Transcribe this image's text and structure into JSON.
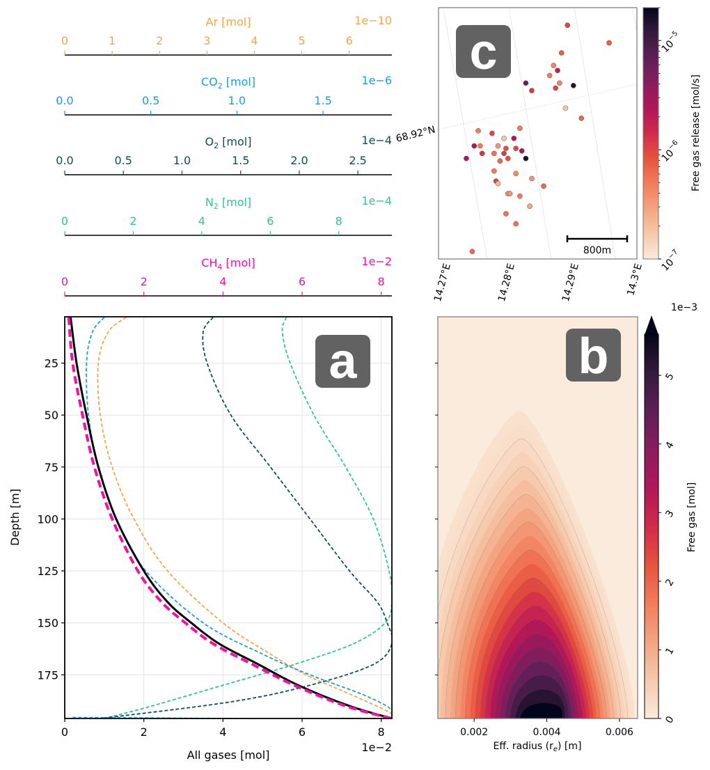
{
  "figure": {
    "panel_labels": {
      "a": "a",
      "b": "b",
      "c": "c"
    }
  },
  "chart_data": [
    {
      "id": "panel-a",
      "type": "line",
      "title": "",
      "xlabel": "All gases [mol]",
      "x_offset_label": "1e−2",
      "ylabel": "Depth [m]",
      "ylim": [
        196,
        2.7
      ],
      "xlim": [
        0,
        8.27
      ],
      "x_ticks": [
        "0",
        "2",
        "4",
        "6",
        "8"
      ],
      "x_tick_values": [
        0,
        2,
        4,
        6,
        8
      ],
      "y_ticks": [
        "25",
        "50",
        "75",
        "100",
        "125",
        "150",
        "175"
      ],
      "y_tick_values": [
        25,
        50,
        75,
        100,
        125,
        150,
        175
      ],
      "grid": true,
      "twin_axes": [
        {
          "gas": "Ar",
          "label": "Ar [mol]",
          "sub": "",
          "offset": "1e−10",
          "color": "#f7a445",
          "max": 6.9,
          "ticks": [
            "0",
            "1",
            "2",
            "3",
            "4",
            "5",
            "6"
          ],
          "tick_values": [
            0,
            1,
            2,
            3,
            4,
            5,
            6
          ]
        },
        {
          "gas": "CO2",
          "label": "CO",
          "sub": "2",
          "unit": " [mol]",
          "offset": "1e−6",
          "color": "#1a9be6",
          "max": 1.9,
          "ticks": [
            "0.0",
            "0.5",
            "1.0",
            "1.5"
          ],
          "tick_values": [
            0,
            0.5,
            1.0,
            1.5
          ]
        },
        {
          "gas": "O2",
          "label": "O",
          "sub": "2",
          "unit": " [mol]",
          "offset": "1e−4",
          "color": "#0e4d52",
          "max": 2.79,
          "ticks": [
            "0.0",
            "0.5",
            "1.0",
            "1.5",
            "2.0",
            "2.5"
          ],
          "tick_values": [
            0,
            0.5,
            1.0,
            1.5,
            2.0,
            2.5
          ]
        },
        {
          "gas": "N2",
          "label": "N",
          "sub": "2",
          "unit": " [mol]",
          "offset": "1e−4",
          "color": "#2ec68c",
          "max": 9.55,
          "ticks": [
            "0",
            "2",
            "4",
            "6",
            "8"
          ],
          "tick_values": [
            0,
            2,
            4,
            6,
            8
          ]
        },
        {
          "gas": "CH4",
          "label": "CH",
          "sub": "4",
          "unit": " [mol]",
          "offset": "1e−2",
          "color": "#f50fa8",
          "max": 8.27,
          "ticks": [
            "0",
            "2",
            "4",
            "6",
            "8"
          ],
          "tick_values": [
            0,
            2,
            4,
            6,
            8
          ]
        }
      ],
      "series": [
        {
          "name": "All gases",
          "color": "#000000",
          "style": "solid",
          "depth": [
            3,
            25,
            50,
            75,
            100,
            125,
            140,
            150,
            160,
            170,
            180,
            190,
            196
          ],
          "values": [
            0.15,
            0.3,
            0.55,
            0.85,
            1.3,
            2.0,
            2.6,
            3.2,
            3.9,
            4.9,
            5.9,
            7.2,
            8.27
          ]
        },
        {
          "name": "CH4",
          "color": "#f50fa8",
          "style": "dash-thick",
          "depth": [
            3,
            25,
            50,
            75,
            100,
            125,
            140,
            150,
            160,
            170,
            180,
            190,
            196
          ],
          "values": [
            0.1,
            0.2,
            0.45,
            0.75,
            1.2,
            1.85,
            2.45,
            3.05,
            3.75,
            4.75,
            5.8,
            7.1,
            8.27
          ]
        },
        {
          "name": "CO2",
          "color": "#1a9be6",
          "style": "dash",
          "depth": [
            3,
            10,
            25,
            50,
            75,
            100,
            125,
            150,
            165,
            175,
            185,
            192,
            196,
            195.5
          ],
          "values": [
            1.0,
            0.7,
            0.55,
            0.6,
            0.85,
            1.3,
            2.05,
            3.5,
            5.0,
            6.2,
            7.6,
            8.27,
            8.1,
            0.2
          ]
        },
        {
          "name": "Ar",
          "color": "#f7a445",
          "style": "dash",
          "depth": [
            3,
            10,
            25,
            50,
            75,
            100,
            125,
            150,
            165,
            175,
            185,
            193,
            196,
            195.8
          ],
          "values": [
            1.55,
            1.1,
            0.85,
            0.9,
            1.2,
            1.75,
            2.6,
            4.0,
            5.2,
            6.1,
            7.3,
            8.2,
            8.27,
            7.0
          ]
        },
        {
          "name": "O2",
          "color": "#0e4d52",
          "style": "dash",
          "depth": [
            3,
            10,
            25,
            50,
            75,
            100,
            125,
            140,
            150,
            160,
            170,
            180,
            188,
            196
          ],
          "values": [
            3.75,
            3.5,
            3.6,
            4.2,
            5.2,
            6.2,
            7.2,
            7.9,
            8.15,
            8.27,
            7.8,
            6.2,
            4.2,
            0.9
          ]
        },
        {
          "name": "N2",
          "color": "#2ec68c",
          "style": "dash",
          "depth": [
            3,
            10,
            25,
            50,
            75,
            100,
            125,
            140,
            150,
            160,
            170,
            180,
            190,
            196
          ],
          "values": [
            5.6,
            5.5,
            5.7,
            6.3,
            7.1,
            7.8,
            8.2,
            8.27,
            8.1,
            7.3,
            5.8,
            4.0,
            2.2,
            1.0
          ]
        }
      ]
    },
    {
      "id": "panel-c",
      "type": "scatter",
      "x_ticks": [
        "14.27°E",
        "14.28°E",
        "14.29°E",
        "14.3°E"
      ],
      "y_ticks": [
        "68.92°N"
      ],
      "scale_bar_label": "800m",
      "colorbar": {
        "label": "Free gas release [mol/s]",
        "scale": "log",
        "range": [
          1e-07,
          2e-05
        ],
        "ticks": [
          {
            "base": "10",
            "exp": "−5",
            "value": 1e-05
          },
          {
            "base": "10",
            "exp": "−6",
            "value": 1e-06
          },
          {
            "base": "10",
            "exp": "−7",
            "value": 1e-07
          }
        ]
      },
      "points_note": "relative map positions (0-1 of frame) and log10 release values",
      "points": [
        {
          "x": 0.65,
          "y": 0.07,
          "v": -6.0
        },
        {
          "x": 0.86,
          "y": 0.14,
          "v": -6.15
        },
        {
          "x": 0.62,
          "y": 0.18,
          "v": -6.15
        },
        {
          "x": 0.58,
          "y": 0.23,
          "v": -6.35
        },
        {
          "x": 0.6,
          "y": 0.25,
          "v": -5.7
        },
        {
          "x": 0.56,
          "y": 0.27,
          "v": -6.3
        },
        {
          "x": 0.61,
          "y": 0.3,
          "v": -6.35
        },
        {
          "x": 0.44,
          "y": 0.3,
          "v": -5.25
        },
        {
          "x": 0.47,
          "y": 0.33,
          "v": -5.95
        },
        {
          "x": 0.59,
          "y": 0.32,
          "v": -6.0
        },
        {
          "x": 0.68,
          "y": 0.31,
          "v": -4.85
        },
        {
          "x": 0.64,
          "y": 0.4,
          "v": -6.75
        },
        {
          "x": 0.72,
          "y": 0.44,
          "v": -6.2
        },
        {
          "x": 0.41,
          "y": 0.48,
          "v": -6.3
        },
        {
          "x": 0.2,
          "y": 0.49,
          "v": -6.3
        },
        {
          "x": 0.27,
          "y": 0.5,
          "v": -6.0
        },
        {
          "x": 0.33,
          "y": 0.52,
          "v": -6.75
        },
        {
          "x": 0.38,
          "y": 0.52,
          "v": -5.6
        },
        {
          "x": 0.18,
          "y": 0.55,
          "v": -5.6
        },
        {
          "x": 0.21,
          "y": 0.55,
          "v": -6.3
        },
        {
          "x": 0.3,
          "y": 0.55,
          "v": -6.45
        },
        {
          "x": 0.34,
          "y": 0.56,
          "v": -6.05
        },
        {
          "x": 0.39,
          "y": 0.56,
          "v": -6.0
        },
        {
          "x": 0.42,
          "y": 0.57,
          "v": -5.6
        },
        {
          "x": 0.22,
          "y": 0.58,
          "v": -5.9
        },
        {
          "x": 0.28,
          "y": 0.58,
          "v": -6.25
        },
        {
          "x": 0.33,
          "y": 0.58,
          "v": -5.95
        },
        {
          "x": 0.14,
          "y": 0.6,
          "v": -5.6
        },
        {
          "x": 0.35,
          "y": 0.6,
          "v": -6.05
        },
        {
          "x": 0.44,
          "y": 0.6,
          "v": -4.8
        },
        {
          "x": 0.31,
          "y": 0.61,
          "v": -6.2
        },
        {
          "x": 0.28,
          "y": 0.65,
          "v": -6.3
        },
        {
          "x": 0.39,
          "y": 0.66,
          "v": -6.4
        },
        {
          "x": 0.47,
          "y": 0.68,
          "v": -6.45
        },
        {
          "x": 0.29,
          "y": 0.69,
          "v": -6.0
        },
        {
          "x": 0.3,
          "y": 0.7,
          "v": -6.65
        },
        {
          "x": 0.53,
          "y": 0.71,
          "v": -6.2
        },
        {
          "x": 0.35,
          "y": 0.74,
          "v": -6.4
        },
        {
          "x": 0.36,
          "y": 0.74,
          "v": -6.45
        },
        {
          "x": 0.41,
          "y": 0.75,
          "v": -6.3
        },
        {
          "x": 0.46,
          "y": 0.79,
          "v": -6.55
        },
        {
          "x": 0.34,
          "y": 0.82,
          "v": -6.25
        },
        {
          "x": 0.39,
          "y": 0.86,
          "v": -6.25
        },
        {
          "x": 0.17,
          "y": 0.97,
          "v": -6.2
        }
      ]
    },
    {
      "id": "panel-b",
      "type": "heatmap",
      "xlabel": "Eff. radius (r",
      "xlabel_sub": "e",
      "xlabel_tail": ") [m]",
      "xlim": [
        0.001,
        0.0065
      ],
      "x_ticks": [
        "0.002",
        "0.004",
        "0.006"
      ],
      "x_tick_values": [
        0.002,
        0.004,
        0.006
      ],
      "ylim": [
        196,
        2.7
      ],
      "y_tick_values": [
        25,
        50,
        75,
        100,
        125,
        150,
        175
      ],
      "peak": {
        "radius": 0.0038,
        "depth": 196,
        "value": 5.6
      },
      "colorbar": {
        "label": "Free gas [mol]",
        "offset": "1e−3",
        "range": [
          0,
          5.6
        ],
        "extend": "max",
        "ticks": [
          "0",
          "1",
          "2",
          "3",
          "4",
          "5"
        ],
        "tick_values": [
          0,
          1,
          2,
          3,
          4,
          5
        ]
      }
    }
  ]
}
